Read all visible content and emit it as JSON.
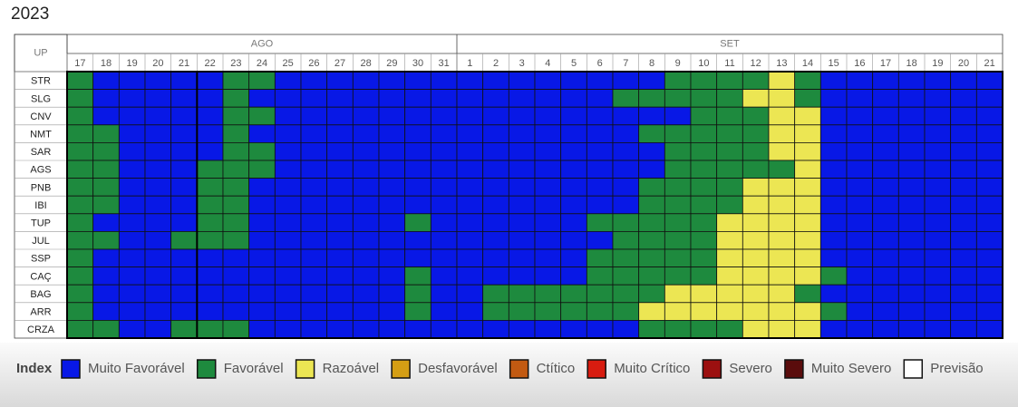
{
  "chart_data": {
    "type": "heatmap",
    "title": "2023",
    "row_header": "UP",
    "months": [
      {
        "name": "AGO",
        "days": [
          17,
          18,
          19,
          20,
          21,
          22,
          23,
          24,
          25,
          26,
          27,
          28,
          29,
          30,
          31
        ]
      },
      {
        "name": "SET",
        "days": [
          1,
          2,
          3,
          4,
          5,
          6,
          7,
          8,
          9,
          10,
          11,
          12,
          13,
          14,
          15,
          16,
          17,
          18,
          19,
          20,
          21
        ]
      }
    ],
    "rows": [
      "STR",
      "SLG",
      "CNV",
      "NMT",
      "SAR",
      "AGS",
      "PNB",
      "IBI",
      "TUP",
      "JUL",
      "SSP",
      "CAÇ",
      "BAG",
      "ARR",
      "CRZA"
    ],
    "legend_title": "Index",
    "legend": [
      {
        "name": "Muito Favorável",
        "color": "#0818e6"
      },
      {
        "name": "Favorável",
        "color": "#1e8a3e"
      },
      {
        "name": "Razoável",
        "color": "#ece653"
      },
      {
        "name": "Desfavorável",
        "color": "#d49e14"
      },
      {
        "name": "Ctítico",
        "color": "#c25a12"
      },
      {
        "name": "Muito Crítico",
        "color": "#d81c10"
      },
      {
        "name": "Severo",
        "color": "#9c1010"
      },
      {
        "name": "Muito Severo",
        "color": "#5a0c0c"
      },
      {
        "name": "Previsão",
        "color": "#ffffff"
      }
    ],
    "cells": [
      [
        1,
        0,
        0,
        0,
        0,
        0,
        1,
        1,
        0,
        0,
        0,
        0,
        0,
        0,
        0,
        0,
        0,
        0,
        0,
        0,
        0,
        0,
        0,
        1,
        1,
        1,
        1,
        2,
        1,
        0,
        0,
        0,
        0,
        0,
        0,
        0
      ],
      [
        1,
        0,
        0,
        0,
        0,
        0,
        1,
        0,
        0,
        0,
        0,
        0,
        0,
        0,
        0,
        0,
        0,
        0,
        0,
        0,
        0,
        1,
        1,
        1,
        1,
        1,
        2,
        2,
        1,
        0,
        0,
        0,
        0,
        0,
        0,
        0
      ],
      [
        1,
        0,
        0,
        0,
        0,
        0,
        1,
        1,
        0,
        0,
        0,
        0,
        0,
        0,
        0,
        0,
        0,
        0,
        0,
        0,
        0,
        0,
        0,
        0,
        1,
        1,
        1,
        2,
        2,
        0,
        0,
        0,
        0,
        0,
        0,
        0
      ],
      [
        1,
        1,
        0,
        0,
        0,
        0,
        1,
        0,
        0,
        0,
        0,
        0,
        0,
        0,
        0,
        0,
        0,
        0,
        0,
        0,
        0,
        0,
        1,
        1,
        1,
        1,
        1,
        2,
        2,
        0,
        0,
        0,
        0,
        0,
        0,
        0
      ],
      [
        1,
        1,
        0,
        0,
        0,
        0,
        1,
        1,
        0,
        0,
        0,
        0,
        0,
        0,
        0,
        0,
        0,
        0,
        0,
        0,
        0,
        0,
        0,
        1,
        1,
        1,
        1,
        2,
        2,
        0,
        0,
        0,
        0,
        0,
        0,
        0
      ],
      [
        1,
        1,
        0,
        0,
        0,
        1,
        1,
        1,
        0,
        0,
        0,
        0,
        0,
        0,
        0,
        0,
        0,
        0,
        0,
        0,
        0,
        0,
        0,
        1,
        1,
        1,
        1,
        1,
        2,
        0,
        0,
        0,
        0,
        0,
        0,
        0
      ],
      [
        1,
        1,
        0,
        0,
        0,
        1,
        1,
        0,
        0,
        0,
        0,
        0,
        0,
        0,
        0,
        0,
        0,
        0,
        0,
        0,
        0,
        0,
        1,
        1,
        1,
        1,
        2,
        2,
        2,
        0,
        0,
        0,
        0,
        0,
        0,
        0
      ],
      [
        1,
        1,
        0,
        0,
        0,
        1,
        1,
        0,
        0,
        0,
        0,
        0,
        0,
        0,
        0,
        0,
        0,
        0,
        0,
        0,
        0,
        0,
        1,
        1,
        1,
        1,
        2,
        2,
        2,
        0,
        0,
        0,
        0,
        0,
        0,
        0
      ],
      [
        1,
        0,
        0,
        0,
        0,
        1,
        1,
        0,
        0,
        0,
        0,
        0,
        0,
        1,
        0,
        0,
        0,
        0,
        0,
        0,
        1,
        1,
        1,
        1,
        1,
        2,
        2,
        2,
        2,
        0,
        0,
        0,
        0,
        0,
        0,
        0
      ],
      [
        1,
        1,
        0,
        0,
        1,
        1,
        1,
        0,
        0,
        0,
        0,
        0,
        0,
        0,
        0,
        0,
        0,
        0,
        0,
        0,
        0,
        1,
        1,
        1,
        1,
        2,
        2,
        2,
        2,
        0,
        0,
        0,
        0,
        0,
        0,
        0
      ],
      [
        1,
        0,
        0,
        0,
        0,
        0,
        0,
        0,
        0,
        0,
        0,
        0,
        0,
        0,
        0,
        0,
        0,
        0,
        0,
        0,
        1,
        1,
        1,
        1,
        1,
        2,
        2,
        2,
        2,
        0,
        0,
        0,
        0,
        0,
        0,
        0
      ],
      [
        1,
        0,
        0,
        0,
        0,
        0,
        0,
        0,
        0,
        0,
        0,
        0,
        0,
        1,
        0,
        0,
        0,
        0,
        0,
        0,
        1,
        1,
        1,
        1,
        1,
        2,
        2,
        2,
        2,
        1,
        0,
        0,
        0,
        0,
        0,
        0
      ],
      [
        1,
        0,
        0,
        0,
        0,
        0,
        0,
        0,
        0,
        0,
        0,
        0,
        0,
        1,
        0,
        0,
        1,
        1,
        1,
        1,
        1,
        1,
        1,
        2,
        2,
        2,
        2,
        2,
        1,
        0,
        0,
        0,
        0,
        0,
        0,
        0
      ],
      [
        1,
        0,
        0,
        0,
        0,
        0,
        0,
        0,
        0,
        0,
        0,
        0,
        0,
        1,
        0,
        0,
        1,
        1,
        1,
        1,
        1,
        1,
        2,
        2,
        2,
        2,
        2,
        2,
        2,
        1,
        0,
        0,
        0,
        0,
        0,
        0
      ],
      [
        1,
        1,
        0,
        0,
        1,
        1,
        1,
        0,
        0,
        0,
        0,
        0,
        0,
        0,
        0,
        0,
        0,
        0,
        0,
        0,
        0,
        0,
        1,
        1,
        1,
        1,
        2,
        2,
        2,
        0,
        0,
        0,
        0,
        0,
        0,
        0
      ]
    ]
  }
}
